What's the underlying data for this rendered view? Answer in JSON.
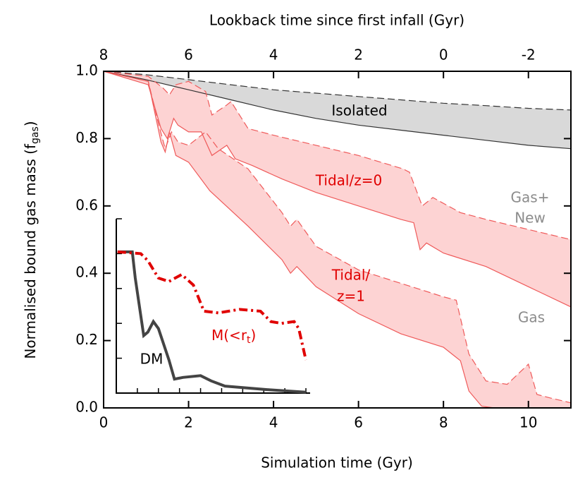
{
  "chart_data": {
    "type": "band",
    "xlabel": "Simulation time (Gyr)",
    "ylabel": {
      "text": "Normalised bound gas mass (f",
      "sub": "gas",
      "after": ")"
    },
    "x2label": "Lookback time since first infall (Gyr)",
    "xlim": [
      0,
      11
    ],
    "xticks": [
      0,
      2,
      4,
      6,
      8,
      10
    ],
    "x2lim": [
      8,
      -3
    ],
    "x2ticks": [
      8,
      6,
      4,
      2,
      0,
      -2
    ],
    "ylim": [
      0,
      1
    ],
    "yticks": [
      {
        "value": 0,
        "label": "0.0"
      },
      {
        "value": 0.2,
        "label": "0.2"
      },
      {
        "value": 0.4,
        "label": "0.4"
      },
      {
        "value": 0.6,
        "label": "0.6"
      },
      {
        "value": 0.8,
        "label": "0.8"
      },
      {
        "value": 1,
        "label": "1.0"
      }
    ],
    "bands": [
      {
        "fill": "#d9d9d9",
        "line_color": "#333333",
        "upper": {
          "x": [
            0,
            1,
            2,
            3,
            4,
            5,
            6,
            7,
            8,
            9,
            10,
            11
          ],
          "values": [
            1,
            0.99,
            0.975,
            0.96,
            0.945,
            0.935,
            0.925,
            0.915,
            0.905,
            0.898,
            0.89,
            0.885
          ]
        },
        "lower": {
          "x": [
            0,
            1,
            2,
            3,
            4,
            5,
            6,
            7,
            8,
            9,
            10,
            11
          ],
          "values": [
            1,
            0.975,
            0.945,
            0.915,
            0.885,
            0.86,
            0.84,
            0.825,
            0.81,
            0.795,
            0.78,
            0.77
          ]
        }
      },
      {
        "fill": "#fdd3d3",
        "line_color": "#ef5a5a",
        "upper": {
          "x": [
            0,
            1.05,
            1.4,
            1.55,
            1.7,
            2.0,
            2.4,
            2.55,
            2.9,
            3.0,
            3.4,
            4,
            5,
            6,
            7.05,
            7.2,
            7.5,
            7.75,
            8.4,
            9,
            10,
            11
          ],
          "values": [
            1,
            0.985,
            0.95,
            0.93,
            0.96,
            0.97,
            0.94,
            0.87,
            0.9,
            0.91,
            0.83,
            0.81,
            0.78,
            0.75,
            0.71,
            0.7,
            0.6,
            0.625,
            0.58,
            0.56,
            0.53,
            0.5
          ]
        },
        "lower": {
          "x": [
            0,
            1.05,
            1.35,
            1.5,
            1.65,
            1.75,
            2.0,
            2.3,
            2.55,
            2.9,
            3.1,
            3.5,
            4.2,
            5,
            6,
            7.0,
            7.3,
            7.45,
            7.6,
            8,
            9,
            10,
            11
          ],
          "values": [
            1,
            0.96,
            0.83,
            0.8,
            0.86,
            0.84,
            0.82,
            0.82,
            0.75,
            0.78,
            0.74,
            0.72,
            0.68,
            0.64,
            0.6,
            0.56,
            0.55,
            0.47,
            0.49,
            0.46,
            0.42,
            0.36,
            0.3
          ]
        }
      },
      {
        "fill": "#fdd3d3",
        "line_color": "#ef5a5a",
        "upper": {
          "x": [
            0,
            1.05,
            1.3,
            1.45,
            1.6,
            1.75,
            2.0,
            2.4,
            2.7,
            3.4,
            4.2,
            4.4,
            4.55,
            5,
            6,
            7,
            8,
            8.3,
            8.6,
            9,
            9.5,
            10,
            10.2,
            10.5,
            11
          ],
          "values": [
            1,
            0.97,
            0.84,
            0.77,
            0.82,
            0.79,
            0.78,
            0.82,
            0.77,
            0.71,
            0.58,
            0.54,
            0.56,
            0.48,
            0.41,
            0.37,
            0.33,
            0.32,
            0.16,
            0.08,
            0.07,
            0.13,
            0.04,
            0.03,
            0.015
          ]
        },
        "lower": {
          "x": [
            0,
            1.05,
            1.35,
            1.45,
            1.55,
            1.7,
            2.0,
            2.5,
            3.4,
            4.2,
            4.4,
            4.55,
            5,
            6,
            7,
            8,
            8.4,
            8.6,
            8.9,
            9.2,
            11
          ],
          "values": [
            1,
            0.97,
            0.79,
            0.76,
            0.82,
            0.75,
            0.73,
            0.645,
            0.54,
            0.44,
            0.4,
            0.42,
            0.36,
            0.28,
            0.22,
            0.18,
            0.14,
            0.05,
            0.005,
            0,
            0
          ]
        }
      }
    ],
    "annotations": [
      "Isolated",
      "Tidal/z=0",
      "Gas+",
      "New",
      "Tidal/",
      "z=1",
      "Gas"
    ],
    "inset": {
      "xlim": [
        0,
        4.6
      ],
      "ylim": [
        0,
        1
      ],
      "xticks": [
        0.5,
        1,
        1.5,
        2,
        2.5,
        3,
        3.5,
        4,
        4.5
      ],
      "yticks": [
        0.2,
        0.4,
        0.6,
        0.8,
        1
      ],
      "series": [
        {
          "name": "DM",
          "color": "#444444",
          "dash": "solid",
          "x": [
            0.03,
            0.38,
            0.45,
            0.65,
            0.75,
            0.88,
            1.0,
            1.25,
            1.38,
            1.58,
            2.0,
            2.25,
            2.58,
            3.08,
            3.58,
            4.5
          ],
          "values": [
            0.81,
            0.81,
            0.66,
            0.33,
            0.35,
            0.41,
            0.37,
            0.19,
            0.08,
            0.09,
            0.1,
            0.07,
            0.04,
            0.03,
            0.02,
            0.005
          ]
        },
        {
          "name": {
            "text": "M(<r",
            "sub": "t",
            "after": ")"
          },
          "color": "#e00000",
          "dash": "dashdot",
          "x": [
            0.03,
            0.58,
            0.75,
            1.0,
            1.25,
            1.55,
            1.83,
            2.08,
            2.42,
            2.92,
            3.42,
            3.67,
            3.92,
            4.22,
            4.33,
            4.5
          ],
          "values": [
            0.81,
            0.8,
            0.76,
            0.66,
            0.64,
            0.68,
            0.62,
            0.47,
            0.46,
            0.48,
            0.47,
            0.41,
            0.4,
            0.41,
            0.37,
            0.19
          ]
        }
      ]
    }
  }
}
